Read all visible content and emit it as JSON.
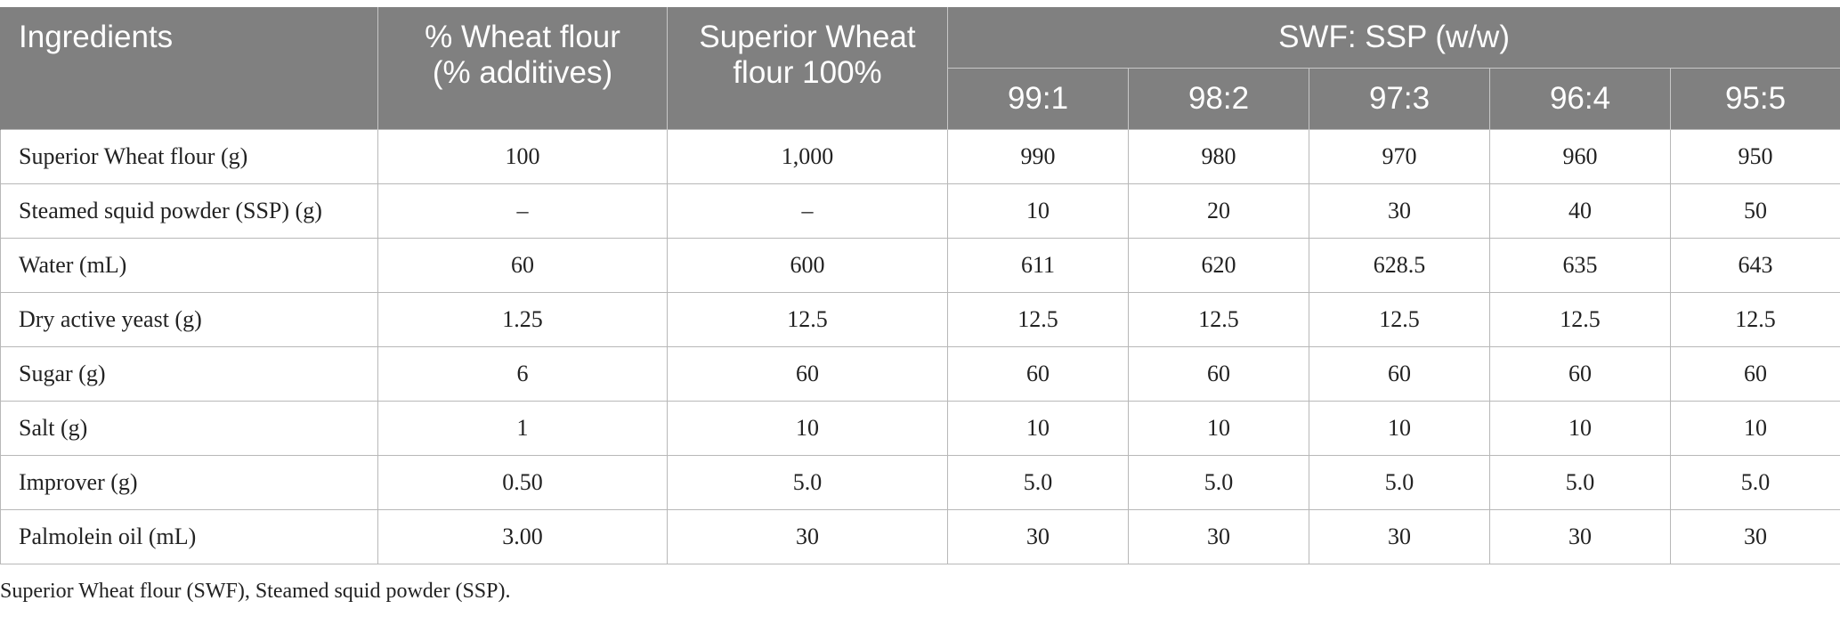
{
  "table": {
    "header": {
      "ingredients": "Ingredients",
      "pct_line1": "% Wheat flour",
      "pct_line2": "(% additives)",
      "swf_line1": "Superior Wheat",
      "swf_line2": "flour 100%",
      "ratio_group": "SWF: SSP (w/w)",
      "ratios": [
        "99:1",
        "98:2",
        "97:3",
        "96:4",
        "95:5"
      ]
    },
    "rows": [
      {
        "label": "Superior Wheat flour (g)",
        "cells": [
          "100",
          "1,000",
          "990",
          "980",
          "970",
          "960",
          "950"
        ]
      },
      {
        "label": "Steamed squid powder (SSP) (g)",
        "cells": [
          "–",
          "–",
          "10",
          "20",
          "30",
          "40",
          "50"
        ]
      },
      {
        "label": "Water (mL)",
        "cells": [
          "60",
          "600",
          "611",
          "620",
          "628.5",
          "635",
          "643"
        ]
      },
      {
        "label": "Dry active yeast (g)",
        "cells": [
          "1.25",
          "12.5",
          "12.5",
          "12.5",
          "12.5",
          "12.5",
          "12.5"
        ]
      },
      {
        "label": "Sugar (g)",
        "cells": [
          "6",
          "60",
          "60",
          "60",
          "60",
          "60",
          "60"
        ]
      },
      {
        "label": "Salt (g)",
        "cells": [
          "1",
          "10",
          "10",
          "10",
          "10",
          "10",
          "10"
        ]
      },
      {
        "label": "Improver (g)",
        "cells": [
          "0.50",
          "5.0",
          "5.0",
          "5.0",
          "5.0",
          "5.0",
          "5.0"
        ]
      },
      {
        "label": "Palmolein oil (mL)",
        "cells": [
          "3.00",
          "30",
          "30",
          "30",
          "30",
          "30",
          "30"
        ]
      }
    ]
  },
  "footnote": "Superior Wheat flour (SWF), Steamed squid powder (SSP)."
}
